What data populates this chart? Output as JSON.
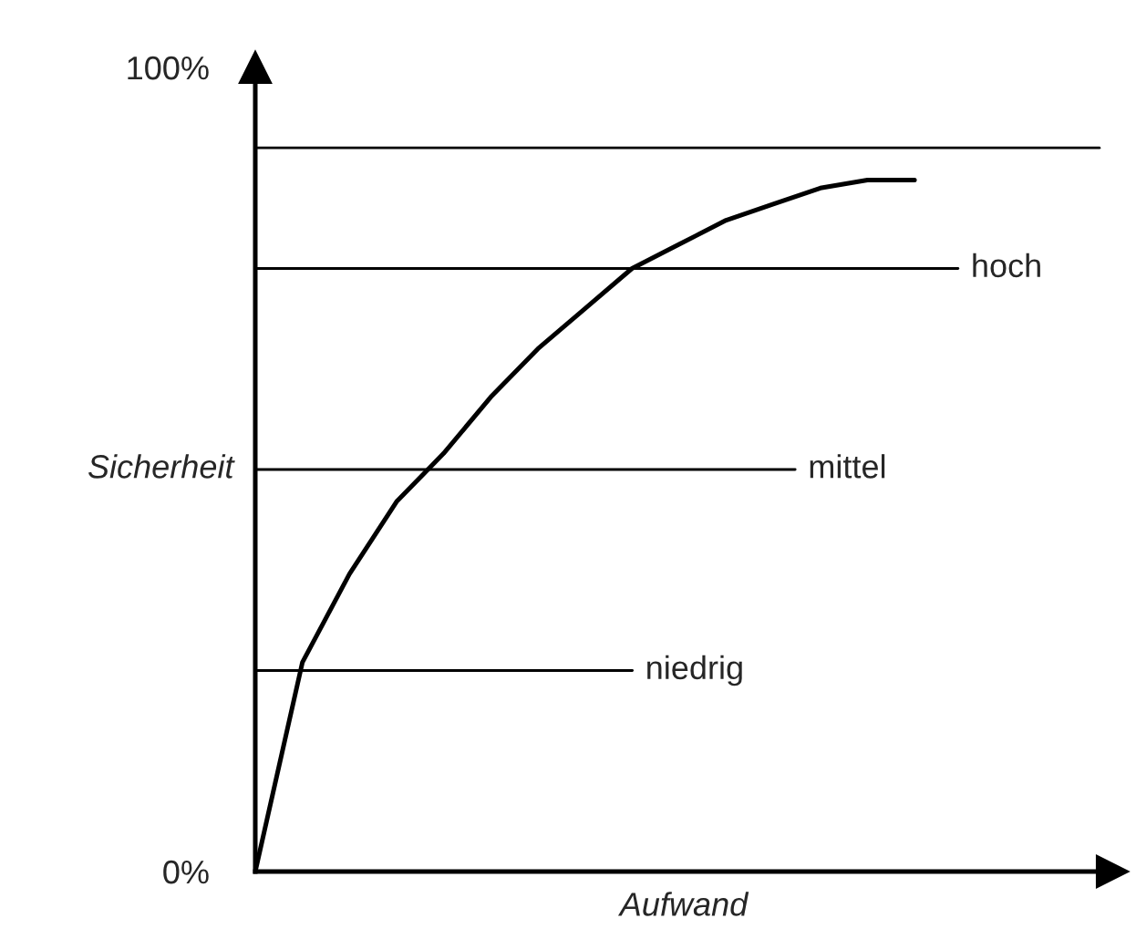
{
  "chart_data": {
    "type": "line",
    "xlabel": "Aufwand",
    "ylabel": "Sicherheit",
    "categories": [
      null,
      null,
      null,
      null,
      null,
      null,
      null,
      null,
      null,
      null,
      null,
      null,
      null,
      null,
      null
    ],
    "series": [
      {
        "color": "#000000",
        "values": [
          0,
          26,
          37,
          46,
          52,
          59,
          65,
          70,
          75,
          78,
          81,
          83,
          85,
          86,
          86
        ]
      }
    ],
    "ylim": [
      0,
      100
    ],
    "yticks": [
      {
        "value": 0,
        "label": "0%"
      },
      {
        "value": 100,
        "label": "100%"
      }
    ],
    "tick_labels": "y",
    "grid": false,
    "legend": false,
    "marker": "none",
    "line_style": "solid",
    "ref_lines": [
      {
        "axis": "y",
        "value": 25,
        "label": "niedrig",
        "color": "#000000"
      },
      {
        "axis": "y",
        "value": 50,
        "label": "mittel",
        "color": "#000000"
      },
      {
        "axis": "y",
        "value": 75,
        "label": "hoch",
        "color": "#000000"
      },
      {
        "axis": "y",
        "value": 90,
        "label": null,
        "color": "#000000"
      }
    ]
  }
}
